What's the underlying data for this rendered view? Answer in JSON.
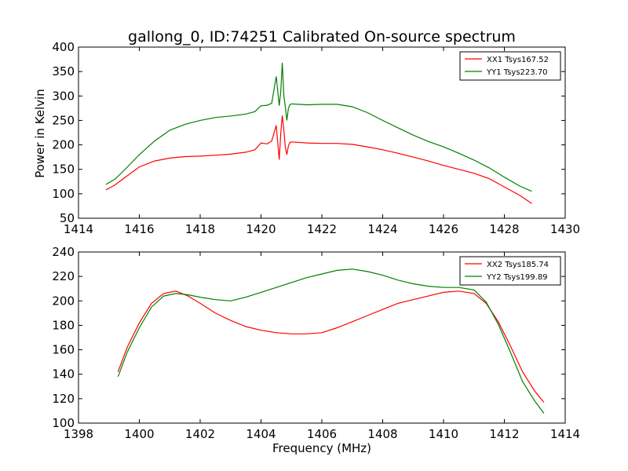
{
  "chart_data": [
    {
      "type": "line",
      "title": "gallong_0, ID:74251 Calibrated On-source spectrum",
      "xlabel": "",
      "ylabel": "Power in Kelvin",
      "xlim": [
        1414,
        1430
      ],
      "ylim": [
        50,
        400
      ],
      "xticks": [
        "1414",
        "1416",
        "1418",
        "1420",
        "1422",
        "1424",
        "1426",
        "1428",
        "1430"
      ],
      "yticks": [
        "50",
        "100",
        "150",
        "200",
        "250",
        "300",
        "350",
        "400"
      ],
      "legend": "top-right",
      "series": [
        {
          "name": "XX1 Tsys167.52",
          "color": "#ff0000",
          "x": [
            1414.9,
            1415.2,
            1415.5,
            1416.0,
            1416.5,
            1417.0,
            1417.5,
            1418.0,
            1418.5,
            1419.0,
            1419.5,
            1419.8,
            1420.0,
            1420.2,
            1420.35,
            1420.5,
            1420.6,
            1420.65,
            1420.7,
            1420.75,
            1420.8,
            1420.85,
            1420.9,
            1420.95,
            1421.0,
            1421.5,
            1422.0,
            1422.5,
            1423.0,
            1423.5,
            1424.0,
            1424.5,
            1425.0,
            1425.5,
            1426.0,
            1426.5,
            1427.0,
            1427.5,
            1428.0,
            1428.5,
            1428.9
          ],
          "y": [
            108,
            118,
            132,
            155,
            167,
            173,
            176,
            177,
            179,
            181,
            185,
            190,
            204,
            202,
            208,
            240,
            170,
            225,
            260,
            230,
            195,
            180,
            198,
            205,
            206,
            204,
            203,
            203,
            201,
            196,
            190,
            183,
            175,
            167,
            158,
            150,
            142,
            131,
            114,
            97,
            80
          ]
        },
        {
          "name": "YY1 Tsys223.70",
          "color": "#008000",
          "x": [
            1414.9,
            1415.2,
            1415.5,
            1416.0,
            1416.5,
            1417.0,
            1417.5,
            1418.0,
            1418.5,
            1419.0,
            1419.5,
            1419.8,
            1420.0,
            1420.2,
            1420.35,
            1420.5,
            1420.6,
            1420.65,
            1420.7,
            1420.75,
            1420.8,
            1420.85,
            1420.9,
            1420.95,
            1421.0,
            1421.5,
            1422.0,
            1422.5,
            1423.0,
            1423.5,
            1424.0,
            1424.5,
            1425.0,
            1425.5,
            1426.0,
            1426.5,
            1427.0,
            1427.5,
            1428.0,
            1428.5,
            1428.9
          ],
          "y": [
            119,
            130,
            148,
            180,
            208,
            230,
            242,
            250,
            256,
            259,
            263,
            268,
            280,
            281,
            285,
            340,
            280,
            310,
            368,
            300,
            278,
            250,
            275,
            282,
            284,
            282,
            283,
            283,
            278,
            266,
            250,
            235,
            220,
            207,
            196,
            183,
            169,
            153,
            134,
            116,
            105
          ]
        }
      ]
    },
    {
      "type": "line",
      "title": "",
      "xlabel": "Frequency (MHz)",
      "ylabel": "",
      "xlim": [
        1398,
        1414
      ],
      "ylim": [
        100,
        240
      ],
      "xticks": [
        "1398",
        "1400",
        "1402",
        "1404",
        "1406",
        "1408",
        "1410",
        "1412",
        "1414"
      ],
      "yticks": [
        "100",
        "120",
        "140",
        "160",
        "180",
        "200",
        "220",
        "240"
      ],
      "legend": "top-right",
      "series": [
        {
          "name": "XX2 Tsys185.74",
          "color": "#ff0000",
          "x": [
            1399.3,
            1399.6,
            1400.0,
            1400.4,
            1400.8,
            1401.2,
            1401.6,
            1402.0,
            1402.5,
            1403.0,
            1403.5,
            1404.0,
            1404.5,
            1405.0,
            1405.5,
            1406.0,
            1406.5,
            1407.0,
            1407.5,
            1408.0,
            1408.5,
            1409.0,
            1409.5,
            1410.0,
            1410.5,
            1411.0,
            1411.4,
            1411.8,
            1412.2,
            1412.6,
            1413.0,
            1413.3
          ],
          "y": [
            142,
            162,
            182,
            198,
            206,
            208,
            204,
            198,
            190,
            184,
            179,
            176,
            174,
            173,
            173,
            174,
            178,
            183,
            188,
            193,
            198,
            201,
            204,
            207,
            208,
            206,
            198,
            183,
            163,
            142,
            126,
            117
          ]
        },
        {
          "name": "YY2 Tsys199.89",
          "color": "#008000",
          "x": [
            1399.3,
            1399.6,
            1400.0,
            1400.4,
            1400.8,
            1401.2,
            1401.6,
            1402.0,
            1402.5,
            1403.0,
            1403.5,
            1404.0,
            1404.5,
            1405.0,
            1405.5,
            1406.0,
            1406.5,
            1407.0,
            1407.5,
            1408.0,
            1408.5,
            1409.0,
            1409.5,
            1410.0,
            1410.5,
            1411.0,
            1411.4,
            1411.8,
            1412.2,
            1412.6,
            1413.0,
            1413.3
          ],
          "y": [
            138,
            158,
            178,
            195,
            204,
            206,
            205,
            203,
            201,
            200,
            203,
            207,
            211,
            215,
            219,
            222,
            225,
            226,
            224,
            221,
            217,
            214,
            212,
            211,
            211,
            209,
            199,
            181,
            158,
            134,
            118,
            108
          ]
        }
      ]
    }
  ]
}
